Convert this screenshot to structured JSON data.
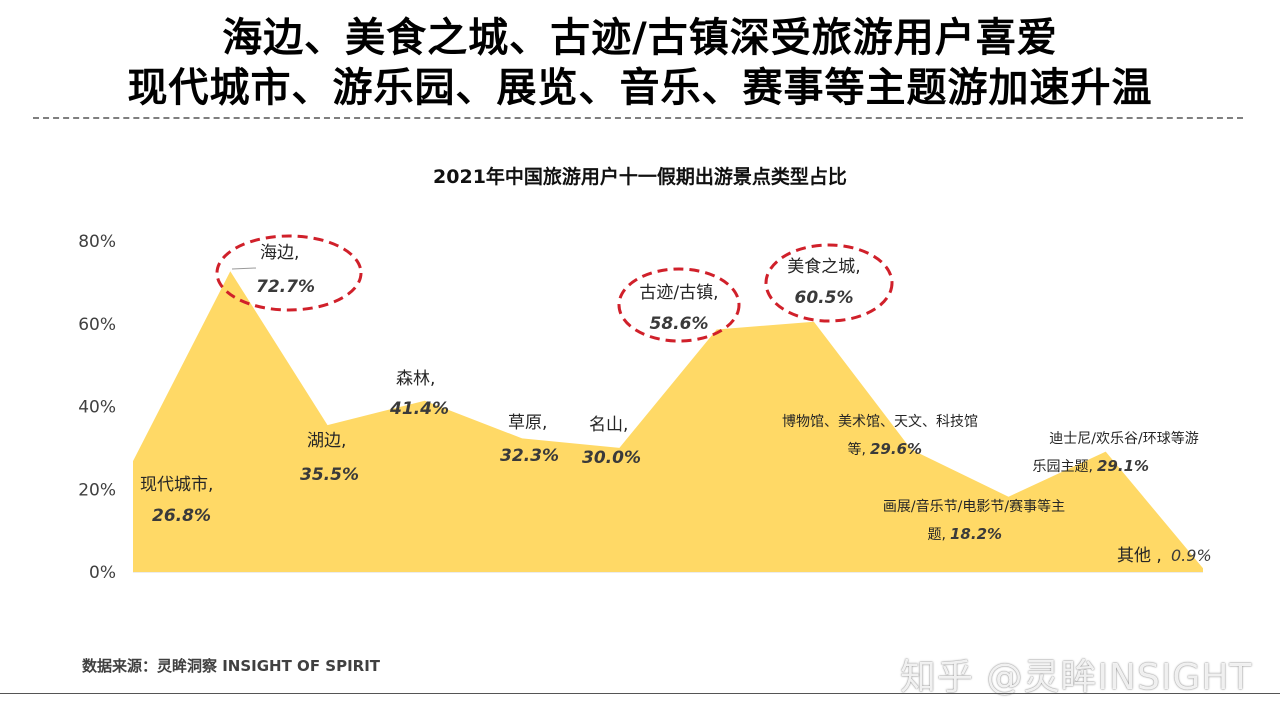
{
  "headline": {
    "line1": "海边、美食之城、古迹/古镇深受旅游用户喜爱",
    "line2": "现代城市、游乐园、展览、音乐、赛事等主题游加速升温"
  },
  "footer": {
    "source": "数据来源：灵眸洞察 INSIGHT OF SPIRIT",
    "watermark": "知乎 @灵眸INSIGHT"
  },
  "colors": {
    "area_fill": "#FFD966",
    "highlight_ring": "#D0202A",
    "axis_line": "#D9D9D9"
  },
  "chart_data": {
    "type": "area",
    "title": "2021年中国旅游用户十一假期出游景点类型占比",
    "xlabel": "",
    "ylabel": "",
    "ylim": [
      0,
      80
    ],
    "yticks": [
      "0%",
      "20%",
      "40%",
      "60%",
      "80%"
    ],
    "legend": "none",
    "grid": false,
    "categories": [
      "现代城市",
      "海边",
      "湖边",
      "森林",
      "草原",
      "名山",
      "古迹/古镇",
      "美食之城",
      "博物馆、美术馆、天文、科技馆等",
      "画展/音乐节/电影节/赛事等主题",
      "迪士尼/欢乐谷/环球等游乐园主题",
      "其他"
    ],
    "values": [
      26.8,
      72.7,
      35.5,
      41.4,
      32.3,
      30.0,
      58.6,
      60.5,
      29.6,
      18.2,
      29.1,
      0.9
    ],
    "labels": [
      {
        "name": "现代城市,",
        "value": "26.8%"
      },
      {
        "name": "海边,",
        "value": "72.7%"
      },
      {
        "name": "湖边,",
        "value": "35.5%"
      },
      {
        "name": "森林,",
        "value": "41.4%"
      },
      {
        "name": "草原,",
        "value": "32.3%"
      },
      {
        "name": "名山,",
        "value": "30.0%"
      },
      {
        "name": "古迹/古镇,",
        "value": "58.6%"
      },
      {
        "name": "美食之城,",
        "value": "60.5%"
      },
      {
        "name": "博物馆、美术馆、天文、科技馆",
        "name2": "等,",
        "value": "29.6%"
      },
      {
        "name": "画展/音乐节/电影节/赛事等主",
        "name2": "题,",
        "value": "18.2%"
      },
      {
        "name": "迪士尼/欢乐谷/环球等游",
        "name2": "乐园主题,",
        "value": "29.1%"
      },
      {
        "name": "其他 ,",
        "value": "0.9%",
        "inline": true
      }
    ],
    "highlighted": [
      "海边",
      "古迹/古镇",
      "美食之城"
    ]
  }
}
